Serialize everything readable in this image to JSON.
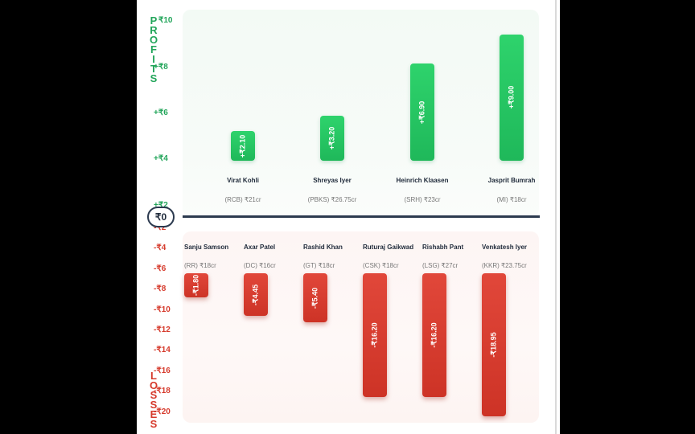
{
  "chart_data": {
    "type": "bar",
    "profit_label": "PROFITS",
    "loss_label": "LOSSES",
    "zero_label": "₹0",
    "profit_ticks": [
      "₹10",
      "+₹8",
      "+₹6",
      "+₹4",
      "+₹2"
    ],
    "loss_ticks": [
      "-₹2",
      "-₹4",
      "-₹6",
      "-₹8",
      "-₹10",
      "-₹12",
      "-₹14",
      "-₹16",
      "-₹18",
      "-₹20"
    ],
    "profits": [
      {
        "player": "Virat Kohli",
        "team": "(RCB) ₹21cr",
        "value": 2.1,
        "label": "+₹2.10"
      },
      {
        "player": "Shreyas Iyer",
        "team": "(PBKS) ₹26.75cr",
        "value": 3.2,
        "label": "+₹3.20"
      },
      {
        "player": "Heinrich Klaasen",
        "team": "(SRH) ₹23cr",
        "value": 6.9,
        "label": "+₹6.90"
      },
      {
        "player": "Jasprit Bumrah",
        "team": "(MI) ₹18cr",
        "value": 9.0,
        "label": "+₹9.00"
      }
    ],
    "losses": [
      {
        "player": "Sanju Samson",
        "team": "(RR) ₹18cr",
        "value": -1.8,
        "label": "-₹1.80"
      },
      {
        "player": "Axar Patel",
        "team": "(DC) ₹16cr",
        "value": -4.45,
        "label": "-₹4.45"
      },
      {
        "player": "Rashid Khan",
        "team": "(GT) ₹18cr",
        "value": -5.4,
        "label": "-₹5.40"
      },
      {
        "player": "Ruturaj Gaikwad",
        "team": "(CSK) ₹18cr",
        "value": -16.2,
        "label": "-₹16.20"
      },
      {
        "player": "Rishabh Pant",
        "team": "(LSG) ₹27cr",
        "value": -16.2,
        "label": "-₹16.20"
      },
      {
        "player": "Venkatesh Iyer",
        "team": "(KKR) ₹23.75cr",
        "value": -18.95,
        "label": "-₹18.95"
      }
    ],
    "colors": {
      "profit": "#22c55e",
      "loss": "#dc3c2e",
      "zero_line": "#2c3a4f"
    }
  }
}
